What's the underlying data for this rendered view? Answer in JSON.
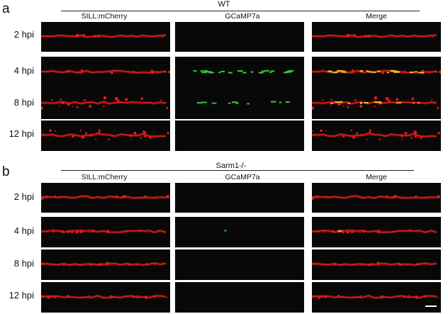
{
  "panels": [
    {
      "letter": "a",
      "group_title": "WT",
      "columns": [
        "SILL:mCherry",
        "GCaMP7a",
        "Merge"
      ],
      "rows": [
        {
          "label": "2 hpi",
          "gcamp_level": 0.0
        },
        {
          "label": "4 hpi",
          "gcamp_level": 0.9
        },
        {
          "label": "8 hpi",
          "gcamp_level": 0.45
        },
        {
          "label": "12 hpi",
          "gcamp_level": 0.0
        }
      ]
    },
    {
      "letter": "b",
      "group_title": "Sarm1-/-",
      "columns": [
        "SILL:mCherry",
        "GCaMP7a",
        "Merge"
      ],
      "rows": [
        {
          "label": "2 hpi",
          "gcamp_level": 0.0
        },
        {
          "label": "4 hpi",
          "gcamp_level": 0.05
        },
        {
          "label": "8 hpi",
          "gcamp_level": 0.0
        },
        {
          "label": "12 hpi",
          "gcamp_level": 0.0
        }
      ]
    }
  ],
  "colors": {
    "mcherry": "#e21a1a",
    "gcamp": "#2fd12f",
    "merge_overlap": "#e8c21a",
    "tile_background": "#080808",
    "scale_bar": "#ffffff"
  }
}
